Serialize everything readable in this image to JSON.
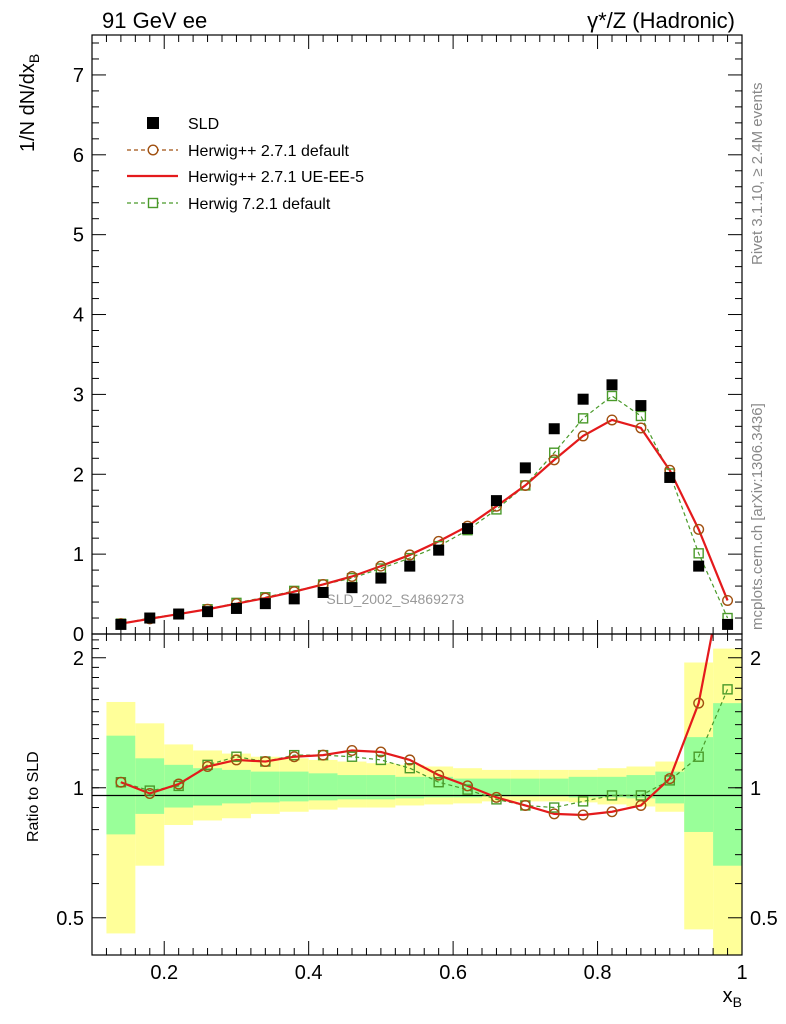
{
  "header": {
    "left_title": "91 GeV ee",
    "right_title": "γ*/Z (Hadronic)"
  },
  "side_labels": {
    "rivet": "Rivet 3.1.10, ≥ 2.4M events",
    "mcplots": "mcplots.cern.ch [arXiv:1306.3436]"
  },
  "colors": {
    "data": "#000000",
    "herwig_default": "#a05010",
    "herwig_ue": "#e41a1c",
    "herwig72": "#4a9a2a",
    "band_inner": "#99ff99",
    "band_outer": "#ffff99"
  },
  "chart_data": [
    {
      "type": "scatter",
      "title": "",
      "xlabel": "",
      "ylabel": "1/N dN/dx_B",
      "ylabel_main": "1/N dN/dx",
      "ylabel_sub": "B",
      "xlim": [
        0.1,
        1.0
      ],
      "ylim": [
        0,
        7.5
      ],
      "y_ticks": [
        0,
        1,
        2,
        3,
        4,
        5,
        6,
        7
      ],
      "watermark": "SLD_2002_S4869273",
      "legend_position": "top-left",
      "x": [
        0.14,
        0.18,
        0.22,
        0.26,
        0.3,
        0.34,
        0.38,
        0.42,
        0.46,
        0.5,
        0.54,
        0.58,
        0.62,
        0.66,
        0.7,
        0.74,
        0.78,
        0.82,
        0.86,
        0.9,
        0.94,
        0.98
      ],
      "series": [
        {
          "name": "SLD",
          "key": "data",
          "marker": "filled-square",
          "values": [
            0.12,
            0.2,
            0.25,
            0.28,
            0.32,
            0.38,
            0.44,
            0.52,
            0.58,
            0.7,
            0.85,
            1.05,
            1.32,
            1.67,
            2.08,
            2.57,
            2.94,
            3.12,
            2.86,
            1.96,
            0.85,
            0.12
          ]
        },
        {
          "name": "Herwig++ 2.7.1 default",
          "key": "herwig_default",
          "marker": "open-circle",
          "values": [
            0.13,
            0.19,
            0.25,
            0.31,
            0.38,
            0.45,
            0.53,
            0.62,
            0.72,
            0.85,
            0.99,
            1.16,
            1.35,
            1.6,
            1.86,
            2.18,
            2.48,
            2.68,
            2.58,
            2.05,
            1.31,
            0.42
          ]
        },
        {
          "name": "Herwig++ 2.7.1 UE-EE-5",
          "key": "herwig_ue",
          "marker": "none",
          "values": [
            0.13,
            0.19,
            0.25,
            0.31,
            0.38,
            0.45,
            0.53,
            0.62,
            0.72,
            0.85,
            0.99,
            1.16,
            1.35,
            1.6,
            1.86,
            2.18,
            2.48,
            2.68,
            2.58,
            2.05,
            1.31,
            0.42
          ]
        },
        {
          "name": "Herwig 7.2.1 default",
          "key": "herwig72",
          "marker": "open-square",
          "values": [
            0.13,
            0.2,
            0.25,
            0.31,
            0.39,
            0.46,
            0.54,
            0.62,
            0.7,
            0.82,
            0.95,
            1.1,
            1.3,
            1.56,
            1.86,
            2.27,
            2.7,
            2.98,
            2.73,
            2.01,
            1.01,
            0.2
          ]
        }
      ]
    },
    {
      "type": "line",
      "title": "",
      "xlabel": "x_B",
      "xlabel_main": "x",
      "xlabel_sub": "B",
      "ylabel": "Ratio to SLD",
      "xlim": [
        0.1,
        1.0
      ],
      "ylim": [
        0.41,
        2.27
      ],
      "y_scale": "log",
      "y_ticks": [
        0.5,
        1,
        2
      ],
      "y_tick_labels": [
        "0.5",
        "1",
        "2"
      ],
      "x_ticks": [
        0.2,
        0.4,
        0.6,
        0.8,
        1.0
      ],
      "x_tick_labels": [
        "0.2",
        "0.4",
        "0.6",
        "0.8",
        "1"
      ],
      "bin_edges": [
        0.12,
        0.16,
        0.2,
        0.24,
        0.28,
        0.32,
        0.36,
        0.4,
        0.44,
        0.48,
        0.52,
        0.56,
        0.6,
        0.64,
        0.68,
        0.72,
        0.76,
        0.8,
        0.84,
        0.88,
        0.92,
        0.96,
        1.0
      ],
      "band_inner": {
        "lower": [
          0.78,
          0.87,
          0.9,
          0.91,
          0.92,
          0.925,
          0.93,
          0.935,
          0.94,
          0.94,
          0.945,
          0.95,
          0.95,
          0.955,
          0.955,
          0.955,
          0.95,
          0.95,
          0.945,
          0.92,
          0.79,
          0.66
        ],
        "upper": [
          1.32,
          1.17,
          1.13,
          1.11,
          1.1,
          1.09,
          1.09,
          1.08,
          1.07,
          1.07,
          1.06,
          1.06,
          1.05,
          1.05,
          1.05,
          1.05,
          1.06,
          1.06,
          1.07,
          1.09,
          1.31,
          1.57
        ]
      },
      "band_outer": {
        "lower": [
          0.46,
          0.66,
          0.82,
          0.84,
          0.85,
          0.87,
          0.88,
          0.89,
          0.9,
          0.9,
          0.91,
          0.915,
          0.92,
          0.93,
          0.93,
          0.93,
          0.925,
          0.915,
          0.905,
          0.88,
          0.47,
          0.38
        ],
        "upper": [
          1.58,
          1.41,
          1.26,
          1.22,
          1.2,
          1.18,
          1.17,
          1.16,
          1.15,
          1.14,
          1.13,
          1.12,
          1.11,
          1.1,
          1.1,
          1.1,
          1.1,
          1.11,
          1.12,
          1.15,
          1.95,
          2.1
        ]
      },
      "x": [
        0.14,
        0.18,
        0.22,
        0.26,
        0.3,
        0.34,
        0.38,
        0.42,
        0.46,
        0.5,
        0.54,
        0.58,
        0.62,
        0.66,
        0.7,
        0.74,
        0.78,
        0.82,
        0.86,
        0.9,
        0.94,
        0.98
      ],
      "series": [
        {
          "name": "Herwig++ 2.7.1 default",
          "key": "herwig_default",
          "marker": "open-circle",
          "values": [
            1.03,
            0.97,
            1.02,
            1.12,
            1.16,
            1.15,
            1.18,
            1.19,
            1.22,
            1.21,
            1.16,
            1.07,
            1.01,
            0.95,
            0.91,
            0.87,
            0.865,
            0.88,
            0.91,
            1.05,
            1.57,
            3.5
          ]
        },
        {
          "name": "Herwig++ 2.7.1 UE-EE-5",
          "key": "herwig_ue",
          "marker": "none",
          "values": [
            1.03,
            0.97,
            1.02,
            1.12,
            1.16,
            1.15,
            1.18,
            1.19,
            1.22,
            1.21,
            1.16,
            1.07,
            1.01,
            0.95,
            0.91,
            0.87,
            0.865,
            0.88,
            0.91,
            1.05,
            1.57,
            3.5
          ]
        },
        {
          "name": "Herwig 7.2.1 default",
          "key": "herwig72",
          "marker": "open-square",
          "values": [
            1.03,
            0.985,
            1.01,
            1.13,
            1.18,
            1.15,
            1.19,
            1.19,
            1.18,
            1.16,
            1.11,
            1.03,
            0.99,
            0.94,
            0.91,
            0.9,
            0.93,
            0.96,
            0.96,
            1.04,
            1.18,
            1.69
          ]
        }
      ]
    }
  ]
}
